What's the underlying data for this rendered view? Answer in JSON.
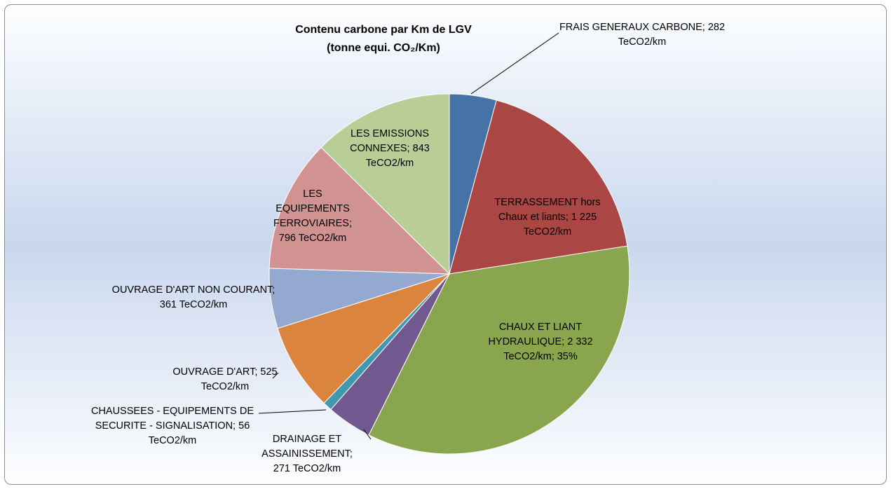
{
  "chart_data": {
    "type": "pie",
    "title": "Contenu carbone par Km de LGV",
    "subtitle": "(tonne equi. CO₂/Km)",
    "categories": [
      "FRAIS GENERAUX CARBONE;",
      "TERRASSEMENT hors Chaux et liants;",
      "CHAUX ET LIANT HYDRAULIQUE;",
      "DRAINAGE ET ASSAINISSEMENT;",
      "CHAUSSEES - EQUIPEMENTS DE SECURITE - SIGNALISATION;",
      "OUVRAGE D'ART;",
      "OUVRAGE D'ART NON COURANT;",
      "LES EQUIPEMENTS FERROVIAIRES;",
      "LES EMISSIONS CONNEXES;"
    ],
    "values": [
      282,
      1225,
      2332,
      271,
      56,
      525,
      361,
      796,
      843
    ],
    "value_labels": [
      "282 TeCO2/km",
      "1 225 TeCO2/km",
      "2 332 TeCO2/km; 35%",
      "271 TeCO2/km",
      "56 TeCO2/km",
      "525 TeCO2/km",
      "361 TeCO2/km",
      "796 TeCO2/km",
      "843 TeCO2/km"
    ],
    "colors": [
      "#4572a7",
      "#aa4643",
      "#89a54e",
      "#71588f",
      "#4198af",
      "#db843d",
      "#93a9cf",
      "#d19392",
      "#b9cd96"
    ]
  }
}
